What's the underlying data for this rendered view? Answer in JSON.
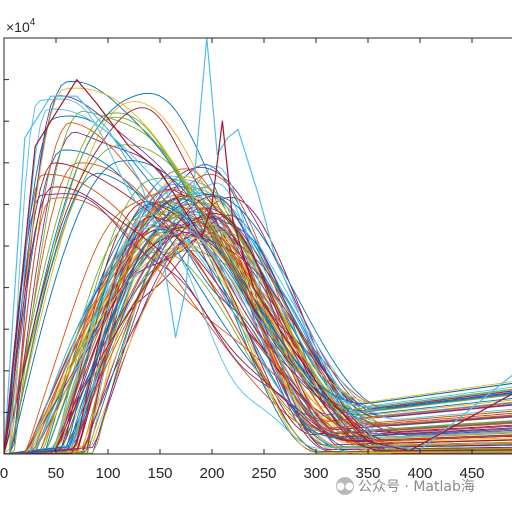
{
  "chart_data": {
    "type": "line",
    "title": "",
    "xlabel": "",
    "ylabel": "",
    "xlim": [
      0,
      500
    ],
    "ylim": [
      0,
      50000
    ],
    "x_ticks": [
      0,
      50,
      100,
      150,
      200,
      250,
      300,
      350,
      400,
      450
    ],
    "y_exponent_label": "×10",
    "y_exponent_power": "4",
    "grid": false,
    "legend": "none",
    "series_count": 100,
    "curve_model": "each curve rises quickly from ~0 (x≈0–40) to a peak of 2.5–4.6×10^4 at x≈25–210, falls back to near 0 around x≈300–400, then rises linearly to 0–11000 at x=500",
    "highlight_series": [
      {
        "x": [
          0,
          20,
          45,
          70,
          100,
          130,
          150,
          165,
          175,
          185,
          195,
          205,
          215,
          225,
          235,
          245,
          260,
          290,
          330,
          360,
          380,
          400,
          500
        ],
        "y": [
          0,
          38000,
          43000,
          43000,
          39000,
          33000,
          26000,
          14000,
          20000,
          36000,
          50000,
          36000,
          38000,
          39000,
          35000,
          31000,
          24000,
          15000,
          6000,
          1000,
          800,
          500,
          10600
        ],
        "color": "#4dbeee"
      },
      {
        "x": [
          0,
          30,
          70,
          90,
          120,
          150,
          170,
          190,
          200,
          210,
          220,
          240,
          270,
          310,
          350,
          390,
          500
        ],
        "y": [
          0,
          37000,
          45000,
          42000,
          37000,
          34000,
          30000,
          26000,
          30000,
          40000,
          28000,
          20000,
          14000,
          7000,
          1500,
          400,
          8000
        ],
        "color": "#a2142f"
      }
    ],
    "colors": [
      "#0072bd",
      "#d95319",
      "#edb120",
      "#7e2f8e",
      "#77ac30",
      "#4dbeee",
      "#a2142f"
    ]
  },
  "watermark": {
    "icon": "wechat-icon",
    "text": "公众号 · Matlab海"
  }
}
